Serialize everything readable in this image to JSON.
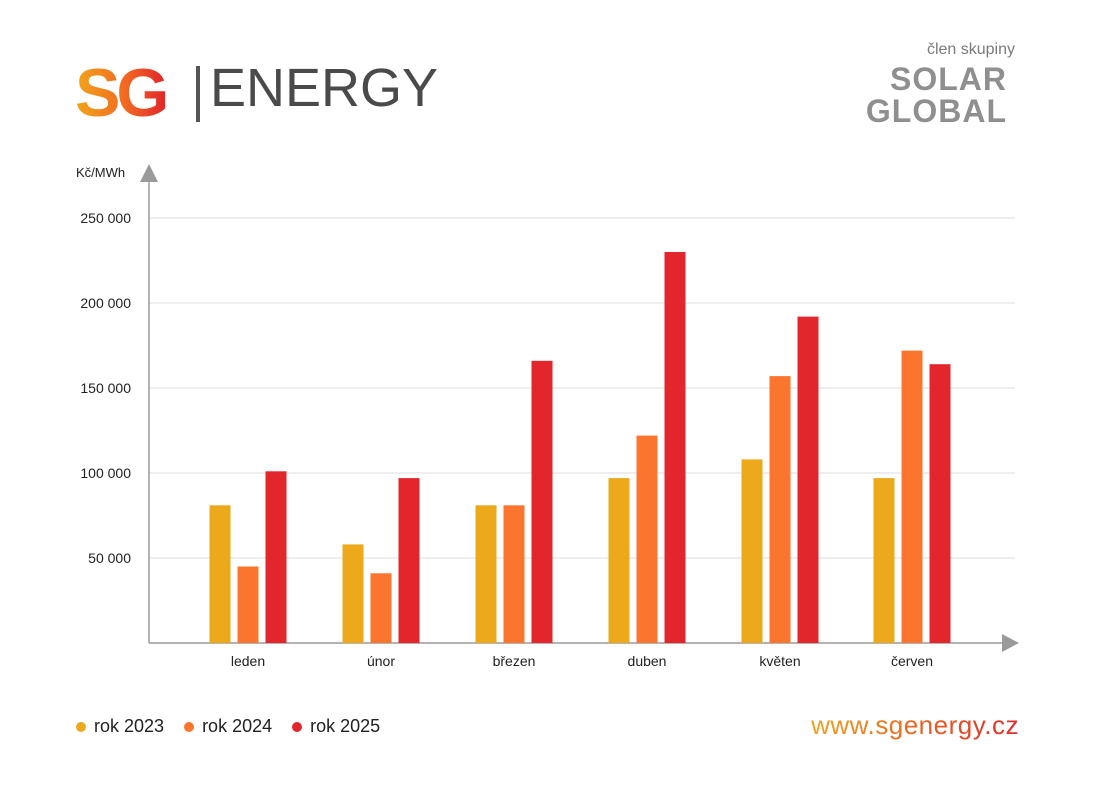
{
  "brand": {
    "logo_letters": "SG",
    "logo_word": "ENERGY",
    "member_text": "člen skupiny",
    "group_line1": "SOLAR",
    "group_line2": "GLOBAL",
    "url": "www.sgenergy.cz"
  },
  "colors": {
    "rok_2023": "#eba91b",
    "rok_2024": "#fb752f",
    "rok_2025": "#e3262b",
    "axis": "#9a9a9a",
    "grid": "#dcdcdc",
    "brand_gray": "#4a4a4a"
  },
  "chart_data": {
    "type": "bar",
    "title": "",
    "xlabel": "",
    "ylabel": "Kč/MWh",
    "ylim": [
      0,
      250000
    ],
    "yticks": [
      50000,
      100000,
      150000,
      200000,
      250000
    ],
    "ytick_labels": [
      "50 000",
      "100 000",
      "150 000",
      "200 000",
      "250 000"
    ],
    "grid": true,
    "legend_position": "bottom-left",
    "categories": [
      "leden",
      "únor",
      "březen",
      "duben",
      "květen",
      "červen"
    ],
    "series": [
      {
        "name": "rok 2023",
        "values": [
          81000,
          58000,
          81000,
          97000,
          108000,
          97000
        ]
      },
      {
        "name": "rok 2024",
        "values": [
          45000,
          41000,
          81000,
          122000,
          157000,
          172000
        ]
      },
      {
        "name": "rok 2025",
        "values": [
          101000,
          97000,
          166000,
          230000,
          192000,
          164000
        ]
      }
    ]
  }
}
